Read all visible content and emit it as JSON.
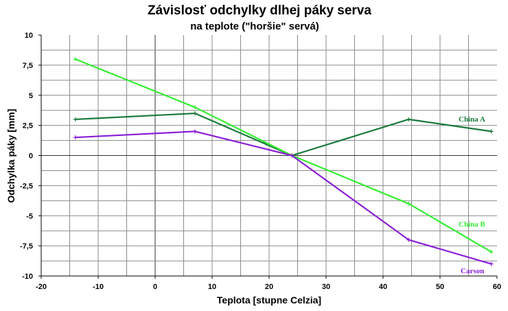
{
  "chart_data": {
    "type": "line",
    "title": "Závislosť odchylky dlhej páky serva",
    "subtitle": "na teplote   (\"horšie\" servá)",
    "xlabel": "Teplota [stupne Celzia]",
    "ylabel": "Odchylka páky [mm]",
    "xlim": [
      -20,
      60
    ],
    "ylim": [
      -10,
      10
    ],
    "xticks": [
      -20,
      -10,
      0,
      10,
      20,
      30,
      40,
      50,
      60
    ],
    "yticks": [
      10,
      7.5,
      5,
      2.5,
      0,
      -2.5,
      -5,
      -7.5,
      -10
    ],
    "xtick_labels": [
      "-20",
      "-10",
      "0",
      "10",
      "20",
      "30",
      "40",
      "50",
      "60"
    ],
    "ytick_labels": [
      "10",
      "7,5",
      "5",
      "2,5",
      "0",
      "-2,5",
      "-5",
      "-7,5",
      "-10"
    ],
    "grid": true,
    "series": [
      {
        "name": "China A",
        "color": "#1a7a3c",
        "x": [
          -14,
          7,
          24,
          44.5,
          59
        ],
        "y": [
          3,
          3.5,
          0,
          3,
          2
        ]
      },
      {
        "name": "China B",
        "color": "#33ee33",
        "x": [
          -14,
          7,
          24,
          44.5,
          59
        ],
        "y": [
          8,
          4,
          0,
          -4,
          -8
        ]
      },
      {
        "name": "Carson",
        "color": "#8a1fd6",
        "x": [
          -14,
          7,
          24,
          44.5,
          59
        ],
        "y": [
          1.5,
          2,
          0,
          -7,
          -9
        ]
      }
    ]
  }
}
